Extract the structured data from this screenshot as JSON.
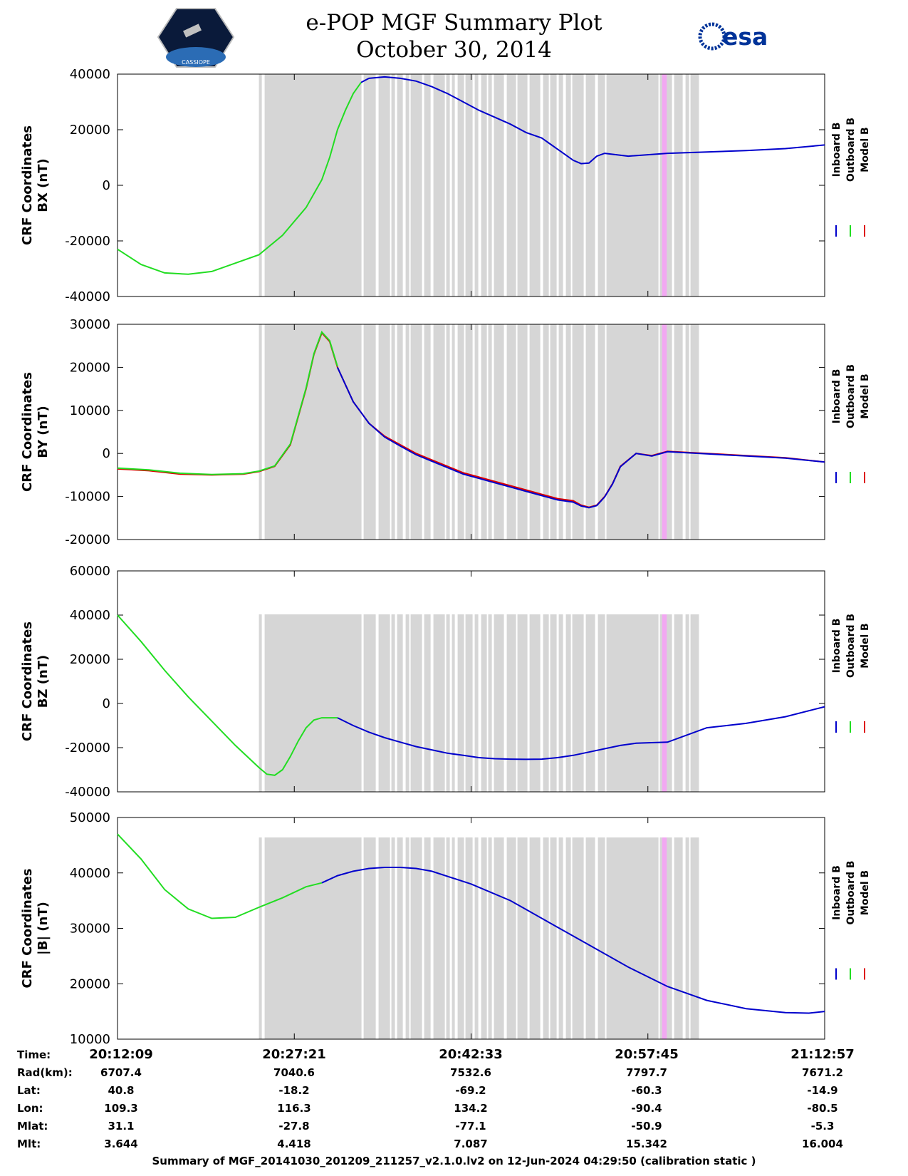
{
  "header": {
    "title_line1": "e-POP MGF Summary Plot",
    "title_line2": "October 30, 2014",
    "left_logo_text": "CASSIOPE",
    "right_logo_text": "esa"
  },
  "legend": {
    "inboard_label": "Inboard B",
    "outboard_label": "Outboard B",
    "model_label": "Model B"
  },
  "colors": {
    "inboard": "#0000cc",
    "outboard": "#22dd22",
    "model": "#dd0000",
    "gap_shading": "#d6d6d6",
    "flag_shading": "#f2a8f2"
  },
  "chart_data": [
    {
      "type": "line",
      "ylabel_line1": "CRF Coordinates",
      "ylabel_line2": "BX (nT)",
      "ylim": [
        -40000,
        40000
      ],
      "yticks": [
        "40000",
        "20000",
        "0",
        "-20000",
        "-40000"
      ],
      "series": [
        {
          "name": "Outboard B",
          "x": [
            0,
            3,
            6,
            9,
            12,
            15,
            18,
            21,
            24,
            26,
            27,
            28,
            29,
            30,
            31
          ],
          "y": [
            -23000,
            -28500,
            -31500,
            -32000,
            -31000,
            -28000,
            -25000,
            -18000,
            -8000,
            2000,
            10000,
            20000,
            27000,
            33000,
            37000
          ]
        },
        {
          "name": "Inboard B",
          "x": [
            31,
            32,
            34,
            36,
            38,
            40,
            42,
            44,
            46,
            48,
            50,
            52,
            54,
            55,
            56,
            57,
            58,
            59,
            60,
            61,
            62,
            65,
            70,
            75,
            80,
            85,
            90
          ],
          "y": [
            37000,
            38500,
            39000,
            38500,
            37500,
            35500,
            33000,
            30000,
            27000,
            24500,
            22000,
            19000,
            17000,
            15000,
            13000,
            11000,
            9000,
            7800,
            8000,
            10500,
            11500,
            10500,
            11500,
            12000,
            12500,
            13200,
            14500
          ]
        }
      ]
    },
    {
      "type": "line",
      "ylabel_line1": "CRF Coordinates",
      "ylabel_line2": "BY (nT)",
      "ylim": [
        -20000,
        30000
      ],
      "yticks": [
        "30000",
        "20000",
        "10000",
        "0",
        "-10000",
        "-20000"
      ],
      "series": [
        {
          "name": "Model B",
          "x": [
            0,
            4,
            8,
            12,
            16,
            18,
            20,
            22,
            24,
            25,
            26,
            27,
            28,
            30,
            32,
            34,
            36,
            38,
            40,
            42,
            44,
            46,
            48,
            50,
            52,
            54,
            56,
            58,
            59,
            60,
            61,
            62,
            63,
            64,
            66,
            68,
            70,
            75,
            80,
            85,
            90
          ],
          "y": [
            -3600,
            -4000,
            -4800,
            -5000,
            -4800,
            -4200,
            -3000,
            2000,
            15000,
            23000,
            28000,
            26000,
            20000,
            12000,
            7000,
            4000,
            2000,
            0,
            -1500,
            -3000,
            -4500,
            -5500,
            -6500,
            -7500,
            -8500,
            -9500,
            -10500,
            -11000,
            -12000,
            -12500,
            -12000,
            -10000,
            -7000,
            -3000,
            0,
            -500,
            500,
            0,
            -500,
            -1000,
            -2000
          ]
        },
        {
          "name": "Outboard B",
          "x": [
            0,
            4,
            8,
            12,
            16,
            18,
            20,
            22,
            24,
            25,
            26,
            27,
            28
          ],
          "y": [
            -3400,
            -3800,
            -4600,
            -4900,
            -4700,
            -4100,
            -2900,
            2200,
            15200,
            23200,
            28200,
            26200,
            20200
          ]
        },
        {
          "name": "Inboard B",
          "x": [
            28,
            30,
            32,
            34,
            36,
            38,
            40,
            42,
            44,
            46,
            48,
            50,
            52,
            54,
            56,
            58,
            59,
            60,
            61,
            62,
            63,
            64,
            66,
            68,
            70,
            75,
            80,
            85,
            90
          ],
          "y": [
            20000,
            12000,
            7000,
            3800,
            1700,
            -300,
            -1800,
            -3300,
            -4800,
            -5800,
            -6800,
            -7800,
            -8800,
            -9800,
            -10800,
            -11300,
            -12200,
            -12600,
            -12100,
            -10100,
            -7100,
            -3100,
            0,
            -600,
            400,
            -100,
            -600,
            -1100,
            -2000
          ]
        }
      ]
    },
    {
      "type": "line",
      "ylabel_line1": "CRF Coordinates",
      "ylabel_line2": "BZ (nT)",
      "ylim": [
        -40000,
        60000
      ],
      "yticks": [
        "60000",
        "40000",
        "20000",
        "0",
        "-20000",
        "-40000"
      ],
      "series": [
        {
          "name": "Outboard B",
          "x": [
            0,
            3,
            6,
            9,
            12,
            15,
            18,
            19,
            20,
            21,
            22,
            23,
            24,
            25,
            26,
            27,
            28
          ],
          "y": [
            40000,
            28000,
            15000,
            3000,
            -8000,
            -19000,
            -29000,
            -32000,
            -32500,
            -30000,
            -24000,
            -17000,
            -11000,
            -7500,
            -6500,
            -6500,
            -6500
          ]
        },
        {
          "name": "Inboard B",
          "x": [
            28,
            30,
            32,
            34,
            36,
            38,
            40,
            42,
            44,
            46,
            48,
            50,
            52,
            54,
            56,
            58,
            60,
            62,
            64,
            66,
            70,
            75,
            80,
            85,
            90
          ],
          "y": [
            -6500,
            -10000,
            -13000,
            -15500,
            -17500,
            -19500,
            -21000,
            -22500,
            -23500,
            -24500,
            -25000,
            -25200,
            -25300,
            -25200,
            -24500,
            -23500,
            -22000,
            -20500,
            -19000,
            -18000,
            -17500,
            -11000,
            -9000,
            -6000,
            -1500
          ]
        }
      ]
    },
    {
      "type": "line",
      "ylabel_line1": "CRF Coordinates",
      "ylabel_line2": "|B| (nT)",
      "ylim": [
        10000,
        50000
      ],
      "yticks": [
        "50000",
        "40000",
        "30000",
        "20000",
        "10000"
      ],
      "series": [
        {
          "name": "Outboard B",
          "x": [
            0,
            3,
            6,
            9,
            12,
            15,
            18,
            21,
            24,
            26
          ],
          "y": [
            47000,
            42500,
            37000,
            33500,
            31800,
            32000,
            33800,
            35500,
            37500,
            38200
          ]
        },
        {
          "name": "Inboard B",
          "x": [
            26,
            28,
            30,
            32,
            34,
            36,
            38,
            40,
            45,
            50,
            55,
            60,
            65,
            70,
            75,
            80,
            85,
            88,
            90
          ],
          "y": [
            38200,
            39500,
            40300,
            40800,
            41000,
            41000,
            40800,
            40300,
            38000,
            35000,
            31000,
            27000,
            23000,
            19500,
            17000,
            15500,
            14800,
            14700,
            15000
          ]
        }
      ]
    }
  ],
  "x_axis": {
    "ticks": [
      0,
      22.5,
      45,
      67.5,
      90
    ],
    "range": [
      0,
      90
    ],
    "shade_range": [
      18,
      74
    ],
    "flag_range": [
      69.3,
      69.9
    ]
  },
  "info_table": {
    "row_labels": [
      "Time:",
      "Rad(km):",
      "Lat:",
      "Lon:",
      "Mlat:",
      "Mlt:"
    ],
    "columns": [
      [
        "20:12:09",
        "6707.4",
        "40.8",
        "109.3",
        "31.1",
        "3.644"
      ],
      [
        "20:27:21",
        "7040.6",
        "-18.2",
        "116.3",
        "-27.8",
        "4.418"
      ],
      [
        "20:42:33",
        "7532.6",
        "-69.2",
        "134.2",
        "-77.1",
        "7.087"
      ],
      [
        "20:57:45",
        "7797.7",
        "-60.3",
        "-90.4",
        "-50.9",
        "15.342"
      ],
      [
        "21:12:57",
        "7671.2",
        "-14.9",
        "-80.5",
        "-5.3",
        "16.004"
      ]
    ]
  },
  "footer": {
    "text": "Summary of MGF_20141030_201209_211257_v2.1.0.lv2 on 12-Jun-2024 04:29:50 (calibration static )"
  }
}
